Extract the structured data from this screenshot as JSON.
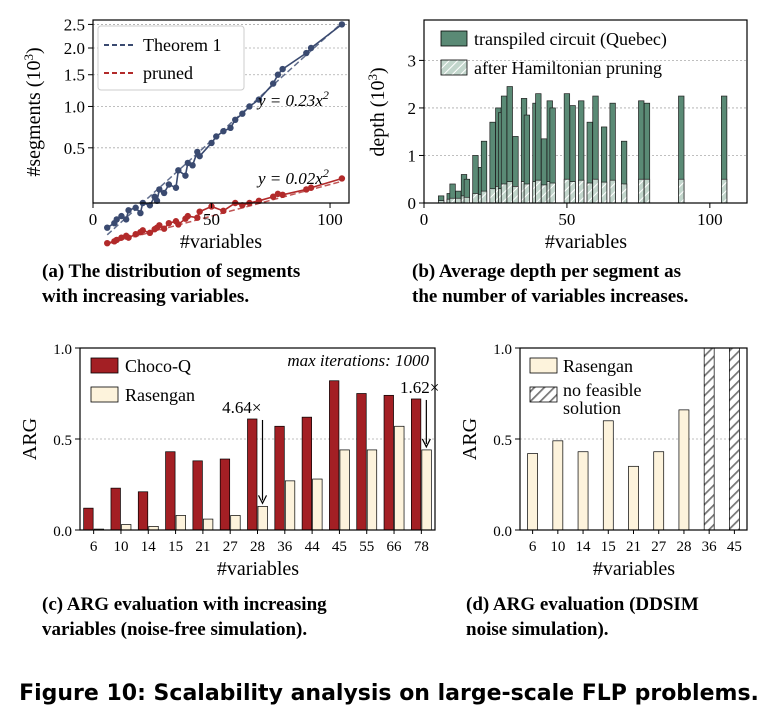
{
  "figure_caption": "Figure 10: Scalability analysis on large-scale FLP problems.",
  "colors": {
    "theorem": "#3a4a70",
    "pruned": "#b22a2a",
    "transpiled": "#5a8a75",
    "after_pruning": "#c2d6cc",
    "choco": "#a31f24",
    "rasengan": "#fdf3dc",
    "infeasible_hatch": "#777777"
  },
  "chart_data": [
    {
      "id": "a",
      "type": "line",
      "caption": [
        "(a) The distribution of segments",
        "with increasing variables."
      ],
      "xlabel": "#variables",
      "ylabel": "#segments  (10",
      "ylabel_sup": "3",
      "ylabel_close": ")",
      "xlim": [
        0,
        108
      ],
      "ylim": [
        0.1,
        2.6
      ],
      "yscale": "sqrt",
      "xticks": [
        "0",
        "50",
        "100"
      ],
      "xtick_values": [
        0,
        50,
        100
      ],
      "yticks": [
        "0.5",
        "1.0",
        "1.5",
        "2.0",
        "2.5"
      ],
      "ytick_values": [
        0.5,
        1.0,
        1.5,
        2.0,
        2.5
      ],
      "grid": true,
      "legend_position": "top-left",
      "fit_labels": [
        {
          "text": "y = 0.23x",
          "sup": "2",
          "series": "Theorem 1"
        },
        {
          "text": "y = 0.02x",
          "sup": "2",
          "series": "pruned"
        }
      ],
      "series": [
        {
          "name": "Theorem 1",
          "x": [
            6,
            9,
            10,
            12,
            14,
            15,
            18,
            20,
            21,
            24,
            26,
            27,
            28,
            30,
            32,
            35,
            36,
            39,
            40,
            42,
            44,
            45,
            50,
            52,
            55,
            58,
            60,
            63,
            66,
            70,
            76,
            78,
            80,
            90,
            92,
            105
          ],
          "y": [
            0.02,
            0.03,
            0.04,
            0.05,
            0.04,
            0.07,
            0.08,
            0.06,
            0.1,
            0.09,
            0.13,
            0.11,
            0.17,
            0.15,
            0.2,
            0.18,
            0.3,
            0.26,
            0.36,
            0.34,
            0.46,
            0.42,
            0.55,
            0.62,
            0.68,
            0.72,
            0.82,
            0.9,
            1.0,
            1.1,
            1.35,
            1.5,
            1.6,
            1.9,
            2.0,
            2.5
          ]
        },
        {
          "name": "pruned",
          "x": [
            6,
            9,
            10,
            12,
            14,
            15,
            18,
            20,
            21,
            24,
            26,
            27,
            28,
            30,
            32,
            35,
            36,
            39,
            40,
            44,
            45,
            50,
            55,
            60,
            63,
            66,
            70,
            76,
            78,
            80,
            90,
            92,
            105
          ],
          "y": [
            0.001,
            0.002,
            0.003,
            0.005,
            0.007,
            0.005,
            0.009,
            0.012,
            0.015,
            0.011,
            0.017,
            0.02,
            0.025,
            0.018,
            0.03,
            0.035,
            0.027,
            0.042,
            0.05,
            0.045,
            0.065,
            0.085,
            0.068,
            0.1,
            0.09,
            0.1,
            0.11,
            0.13,
            0.145,
            0.14,
            0.17,
            0.18,
            0.24
          ]
        }
      ]
    },
    {
      "id": "b",
      "type": "bar",
      "caption": [
        "(b) Average depth per segment as",
        "the number of variables increases."
      ],
      "xlabel": "#variables",
      "ylabel": "depth (10",
      "ylabel_sup": "3",
      "ylabel_close": ")",
      "xlim": [
        0,
        113
      ],
      "ylim": [
        0,
        3.85
      ],
      "xticks": [
        "0",
        "50",
        "100"
      ],
      "xtick_values": [
        0,
        50,
        100
      ],
      "yticks": [
        "0",
        "1",
        "2",
        "3"
      ],
      "ytick_values": [
        0,
        1,
        2,
        3
      ],
      "grid": true,
      "legend_position": "top-right",
      "series": [
        {
          "name": "transpiled circuit (Quebec)",
          "x": [
            6,
            9,
            10,
            12,
            14,
            15,
            18,
            20,
            21,
            24,
            26,
            27,
            28,
            30,
            32,
            35,
            36,
            39,
            40,
            42,
            44,
            45,
            50,
            52,
            55,
            58,
            60,
            63,
            66,
            70,
            76,
            78,
            90,
            105
          ],
          "values": [
            0.15,
            0.2,
            0.4,
            0.25,
            0.6,
            0.5,
            1.0,
            0.75,
            1.3,
            1.7,
            2.0,
            1.9,
            2.25,
            2.45,
            1.4,
            2.2,
            1.85,
            2.1,
            2.3,
            1.35,
            2.15,
            2.0,
            2.3,
            2.05,
            2.15,
            1.7,
            2.25,
            1.6,
            2.1,
            1.3,
            2.15,
            2.1,
            2.25,
            2.25
          ]
        },
        {
          "name": "after Hamiltonian pruning",
          "x": [
            6,
            9,
            10,
            12,
            14,
            15,
            18,
            20,
            21,
            24,
            26,
            27,
            28,
            30,
            32,
            35,
            36,
            39,
            40,
            42,
            44,
            45,
            50,
            52,
            55,
            58,
            60,
            63,
            66,
            70,
            76,
            78,
            90,
            105
          ],
          "values": [
            0.05,
            0.08,
            0.1,
            0.1,
            0.15,
            0.12,
            0.2,
            0.18,
            0.25,
            0.3,
            0.35,
            0.3,
            0.4,
            0.45,
            0.35,
            0.45,
            0.4,
            0.45,
            0.48,
            0.38,
            0.45,
            0.42,
            0.5,
            0.45,
            0.48,
            0.42,
            0.5,
            0.44,
            0.48,
            0.4,
            0.5,
            0.5,
            0.5,
            0.5
          ]
        }
      ]
    },
    {
      "id": "c",
      "type": "bar",
      "caption": [
        "(c) ARG evaluation with increasing",
        "variables (noise-free simulation)."
      ],
      "xlabel": "#variables",
      "ylabel": "ARG",
      "ylim": [
        0,
        1.0
      ],
      "yticks": [
        "0.0",
        "0.5",
        "1.0"
      ],
      "ytick_values": [
        0,
        0.5,
        1.0
      ],
      "grid": true,
      "legend_position": "top-left",
      "categories": [
        "6",
        "10",
        "14",
        "15",
        "21",
        "27",
        "28",
        "36",
        "44",
        "45",
        "55",
        "66",
        "78"
      ],
      "title_note": "max iterations: 1000",
      "annotations": [
        {
          "text": "4.64×",
          "category": "28"
        },
        {
          "text": "1.62×",
          "category": "78"
        }
      ],
      "series": [
        {
          "name": "Choco-Q",
          "values": [
            0.12,
            0.23,
            0.21,
            0.43,
            0.38,
            0.39,
            0.61,
            0.57,
            0.62,
            0.82,
            0.75,
            0.74,
            0.72
          ]
        },
        {
          "name": "Rasengan",
          "values": [
            0.0,
            0.03,
            0.02,
            0.08,
            0.06,
            0.08,
            0.13,
            0.27,
            0.28,
            0.44,
            0.44,
            0.57,
            0.44
          ]
        }
      ]
    },
    {
      "id": "d",
      "type": "bar",
      "caption": [
        "(d) ARG evaluation (DDSIM",
        "noise simulation)."
      ],
      "xlabel": "#variables",
      "ylabel": "ARG",
      "ylim": [
        0,
        1.0
      ],
      "yticks": [
        "0.0",
        "0.5",
        "1.0"
      ],
      "ytick_values": [
        0,
        0.5,
        1.0
      ],
      "grid": true,
      "legend_position": "top-left",
      "categories": [
        "6",
        "10",
        "14",
        "15",
        "21",
        "27",
        "28",
        "36",
        "45"
      ],
      "series": [
        {
          "name": "Rasengan",
          "values": [
            0.42,
            0.49,
            0.43,
            0.6,
            0.35,
            0.43,
            0.66,
            null,
            null
          ]
        },
        {
          "name": "no feasible solution",
          "name_lines": [
            "no feasible",
            "solution"
          ],
          "values": [
            null,
            null,
            null,
            null,
            null,
            null,
            null,
            1.0,
            1.0
          ]
        }
      ]
    }
  ]
}
